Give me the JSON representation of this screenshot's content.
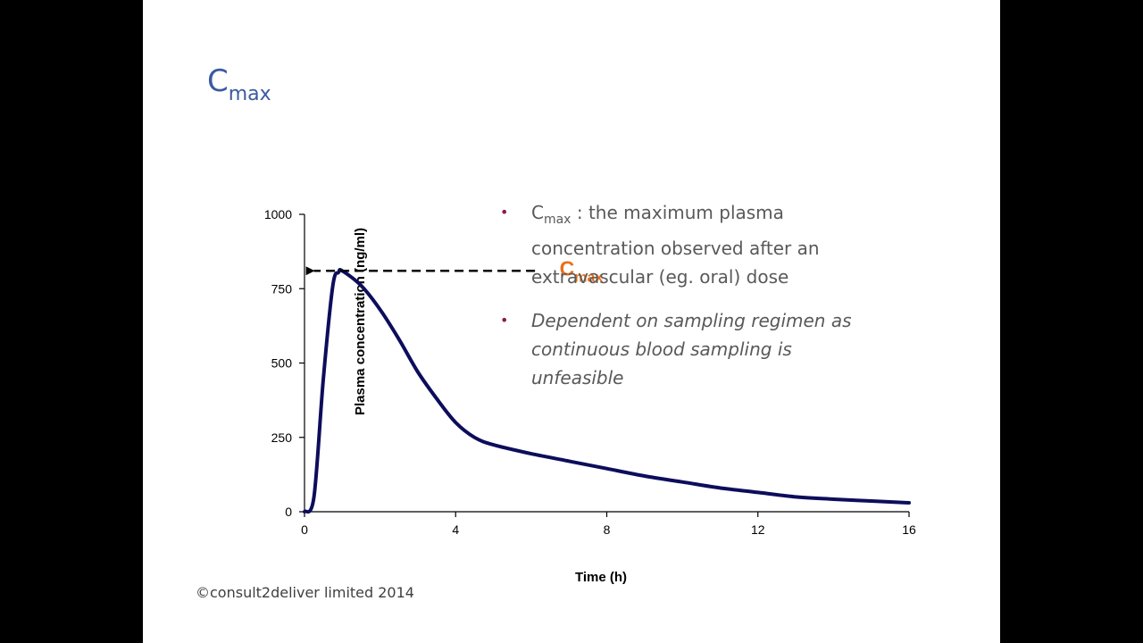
{
  "slide": {
    "title_main": "C",
    "title_sub": "max",
    "copyright": "©consult2deliver limited 2014"
  },
  "bullets": [
    {
      "lead": "C",
      "lead_sub": "max",
      "text": " : the maximum plasma concentration observed after an extravascular (eg. oral) dose",
      "italic": false
    },
    {
      "lead": "",
      "lead_sub": "",
      "text": "Dependent on sampling regimen as continuous blood sampling is unfeasible",
      "italic": true
    }
  ],
  "colors": {
    "curve": "#0d0d5c",
    "title": "#3a5aa0",
    "annotation": "#e8701a",
    "bullet_dot": "#8b1a4e"
  },
  "chart_data": {
    "type": "line",
    "xlabel": "Time (h)",
    "ylabel": "Plasma concentration (ng/ml)",
    "xlim": [
      0,
      16
    ],
    "ylim": [
      0,
      1000
    ],
    "xticks": [
      0,
      4,
      8,
      12,
      16
    ],
    "yticks": [
      0,
      250,
      500,
      750,
      1000
    ],
    "grid": false,
    "series": [
      {
        "x": [
          0,
          0.25,
          0.5,
          0.75,
          0.9,
          1.0,
          1.5,
          2.0,
          2.5,
          3.0,
          3.5,
          4.0,
          4.5,
          5.0,
          6.0,
          7.0,
          8.0,
          9.0,
          10.0,
          11.0,
          12.0,
          13.0,
          14.0,
          15.0,
          16.0
        ],
        "y": [
          0,
          50,
          450,
          760,
          805,
          810,
          760,
          680,
          580,
          470,
          380,
          300,
          250,
          225,
          195,
          170,
          145,
          120,
          100,
          80,
          65,
          50,
          42,
          36,
          30
        ]
      }
    ],
    "annotation": {
      "label": "C",
      "label_sub": "max",
      "value": 810
    }
  }
}
